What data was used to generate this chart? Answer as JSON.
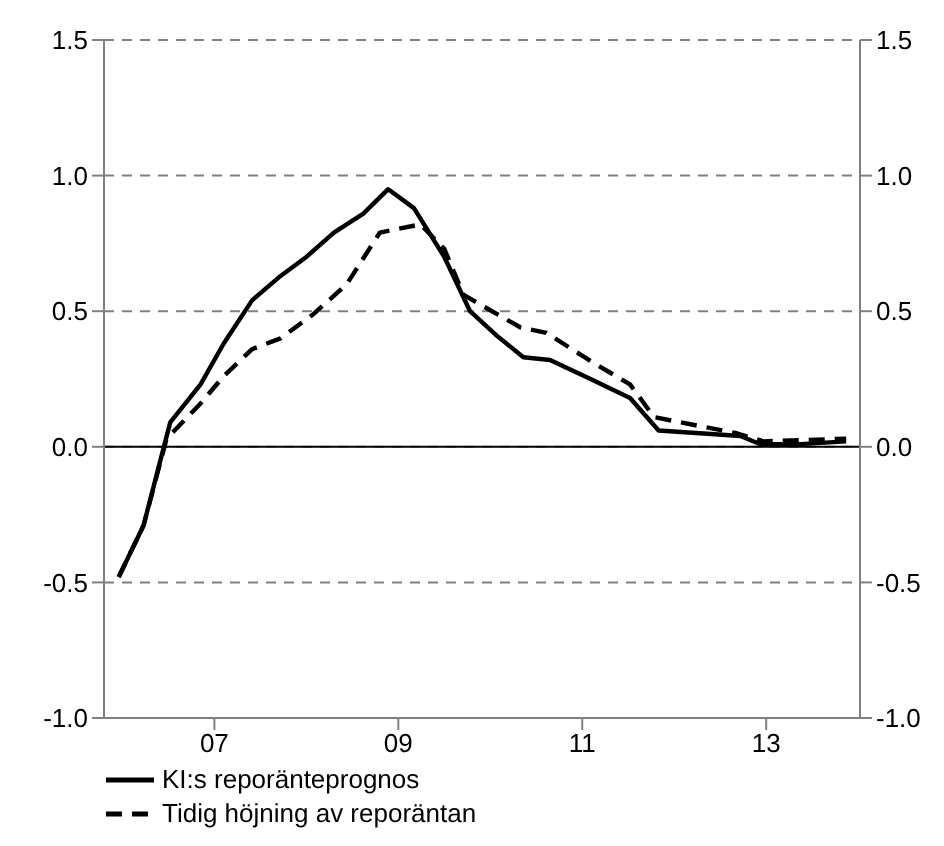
{
  "chart_data": {
    "type": "line",
    "xlim": [
      5.8,
      14.02
    ],
    "xticks": [
      {
        "value": 7,
        "label": "07"
      },
      {
        "value": 9,
        "label": "09"
      },
      {
        "value": 11,
        "label": "11"
      },
      {
        "value": 13,
        "label": "13"
      }
    ],
    "ylim": [
      -1,
      1.5
    ],
    "yticks": [
      {
        "value": -1,
        "label": "-1.0"
      },
      {
        "value": -0.5,
        "label": "-0.5"
      },
      {
        "value": 0,
        "label": "0.0"
      },
      {
        "value": 0.5,
        "label": "0.5"
      },
      {
        "value": 1,
        "label": "1.0"
      },
      {
        "value": 1.5,
        "label": "1.5"
      }
    ],
    "y2lim": [
      -1,
      1.5
    ],
    "y2ticks": [
      {
        "value": -1,
        "label": "-1.0"
      },
      {
        "value": -0.5,
        "label": "-0.5"
      },
      {
        "value": 0,
        "label": "0.0"
      },
      {
        "value": 0.5,
        "label": "0.5"
      },
      {
        "value": 1,
        "label": "1.0"
      },
      {
        "value": 1.5,
        "label": "1.5"
      }
    ],
    "grid": "y",
    "legend": "bottom",
    "marker": "none",
    "ref_lines": [
      {
        "axis": "y",
        "value": 0,
        "color": "#000000",
        "line_style": "solid"
      }
    ],
    "series": [
      {
        "name": "KI:s reporänteprognos",
        "color": "#000000",
        "line_style": "solid",
        "x": [
          5.96,
          6.23,
          6.52,
          6.85,
          7.1,
          7.41,
          7.72,
          8.0,
          8.3,
          8.62,
          8.89,
          9.17,
          9.5,
          9.78,
          10.07,
          10.36,
          10.65,
          11.09,
          11.52,
          11.83,
          12.28,
          12.72,
          12.93,
          13.37,
          13.87
        ],
        "values": [
          -0.48,
          -0.29,
          0.09,
          0.23,
          0.38,
          0.54,
          0.63,
          0.7,
          0.79,
          0.86,
          0.95,
          0.88,
          0.7,
          0.5,
          0.41,
          0.33,
          0.32,
          0.25,
          0.18,
          0.06,
          0.05,
          0.04,
          0.01,
          0.01,
          0.02
        ]
      },
      {
        "name": "Tidig höjning av reporäntan",
        "color": "#000000",
        "line_style": "dashed",
        "x": [
          5.96,
          6.23,
          6.48,
          6.85,
          7.1,
          7.41,
          7.72,
          8.08,
          8.44,
          8.8,
          9.24,
          9.5,
          9.71,
          10.07,
          10.33,
          10.61,
          11.12,
          11.52,
          11.78,
          12.07,
          12.68,
          12.97,
          13.87
        ],
        "values": [
          -0.48,
          -0.29,
          0.03,
          0.16,
          0.26,
          0.36,
          0.4,
          0.49,
          0.6,
          0.79,
          0.82,
          0.73,
          0.56,
          0.49,
          0.44,
          0.42,
          0.31,
          0.23,
          0.11,
          0.09,
          0.05,
          0.02,
          0.03
        ]
      }
    ]
  }
}
